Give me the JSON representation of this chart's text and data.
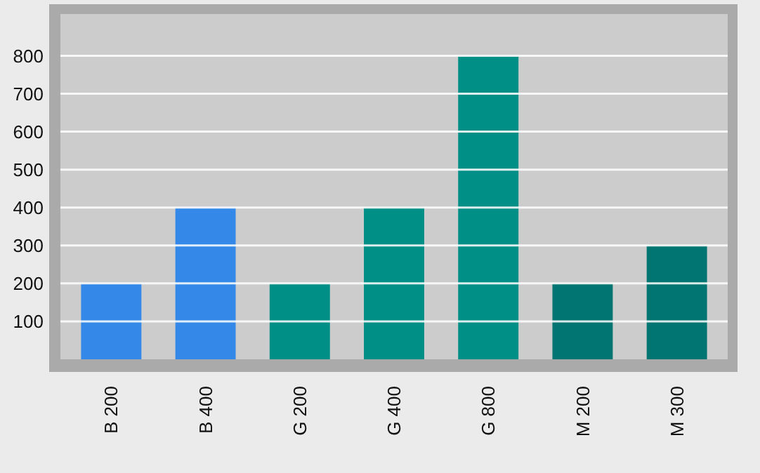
{
  "chart_data": {
    "type": "bar",
    "categories": [
      "B 200",
      "B 400",
      "G 200",
      "G 400",
      "G 800",
      "M 200",
      "M 300"
    ],
    "values": [
      200,
      400,
      200,
      400,
      800,
      200,
      300
    ],
    "colors": [
      "#3388e8",
      "#3388e8",
      "#008f87",
      "#008f87",
      "#008f87",
      "#007571",
      "#007571"
    ],
    "ylim": [
      0,
      910
    ],
    "yticks": [
      100,
      200,
      300,
      400,
      500,
      600,
      700,
      800
    ],
    "grid": "y"
  }
}
